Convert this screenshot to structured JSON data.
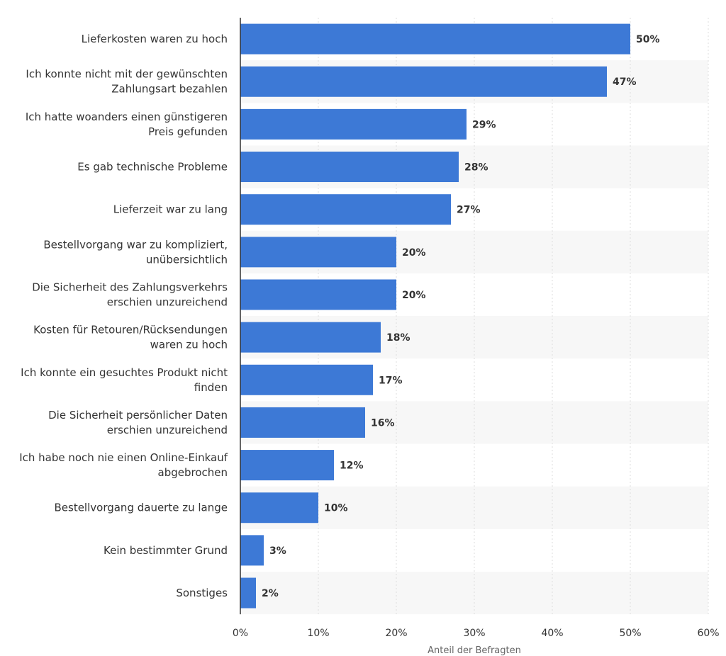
{
  "chart_data": {
    "type": "bar",
    "orientation": "horizontal",
    "categories": [
      "Lieferkosten waren zu hoch",
      "Ich konnte nicht mit der gewünschten Zahlungsart bezahlen",
      "Ich hatte woanders einen günstigeren Preis gefunden",
      "Es gab technische Probleme",
      "Lieferzeit war zu lang",
      "Bestellvorgang war zu kompliziert, unübersichtlich",
      "Die Sicherheit des Zahlungsverkehrs erschien unzureichend",
      "Kosten für Retouren/Rücksendungen waren zu hoch",
      "Ich konnte ein gesuchtes Produkt nicht finden",
      "Die Sicherheit persönlicher Daten erschien unzureichend",
      "Ich habe noch nie einen Online-Einkauf abgebrochen",
      "Bestellvorgang dauerte zu lange",
      "Kein bestimmter Grund",
      "Sonstiges"
    ],
    "category_lines": [
      [
        "Lieferkosten waren zu hoch"
      ],
      [
        "Ich konnte nicht mit der gewünschten",
        "Zahlungsart bezahlen"
      ],
      [
        "Ich hatte woanders einen günstigeren",
        "Preis gefunden"
      ],
      [
        "Es gab technische Probleme"
      ],
      [
        "Lieferzeit war zu lang"
      ],
      [
        "Bestellvorgang war zu kompliziert,",
        "unübersichtlich"
      ],
      [
        "Die Sicherheit des Zahlungsverkehrs",
        "erschien unzureichend"
      ],
      [
        "Kosten für Retouren/Rücksendungen",
        "waren zu hoch"
      ],
      [
        "Ich konnte ein gesuchtes Produkt nicht",
        "finden"
      ],
      [
        "Die Sicherheit persönlicher Daten",
        "erschien unzureichend"
      ],
      [
        "Ich habe noch nie einen Online-Einkauf",
        "abgebrochen"
      ],
      [
        "Bestellvorgang dauerte zu lange"
      ],
      [
        "Kein bestimmter Grund"
      ],
      [
        "Sonstiges"
      ]
    ],
    "values": [
      50,
      47,
      29,
      28,
      27,
      20,
      20,
      18,
      17,
      16,
      12,
      10,
      3,
      2
    ],
    "value_labels": [
      "50%",
      "47%",
      "29%",
      "28%",
      "27%",
      "20%",
      "20%",
      "18%",
      "17%",
      "16%",
      "12%",
      "10%",
      "3%",
      "2%"
    ],
    "xlabel": "Anteil der Befragten",
    "ylabel": "",
    "xlim": [
      0,
      60
    ],
    "xticks": [
      0,
      10,
      20,
      30,
      40,
      50,
      60
    ],
    "xtick_labels": [
      "0%",
      "10%",
      "20%",
      "30%",
      "40%",
      "50%",
      "60%"
    ],
    "grid": true,
    "colors": {
      "bar": "#3d79d6",
      "band": "#f7f7f7",
      "grid": "#dddddd",
      "axis": "#333333",
      "text": "#333333"
    }
  }
}
